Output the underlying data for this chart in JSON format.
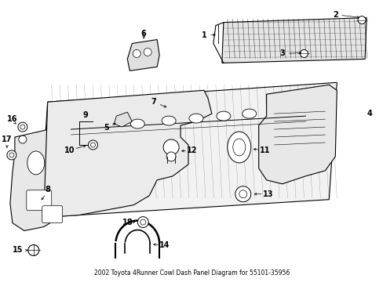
{
  "title": "2002 Toyota 4Runner Cowl Dash Panel Diagram for 55101-35956",
  "bg": "#ffffff",
  "lc": "#000000",
  "fig_w": 4.89,
  "fig_h": 3.6,
  "dpi": 100,
  "label_fs": 7,
  "title_fs": 5.5
}
